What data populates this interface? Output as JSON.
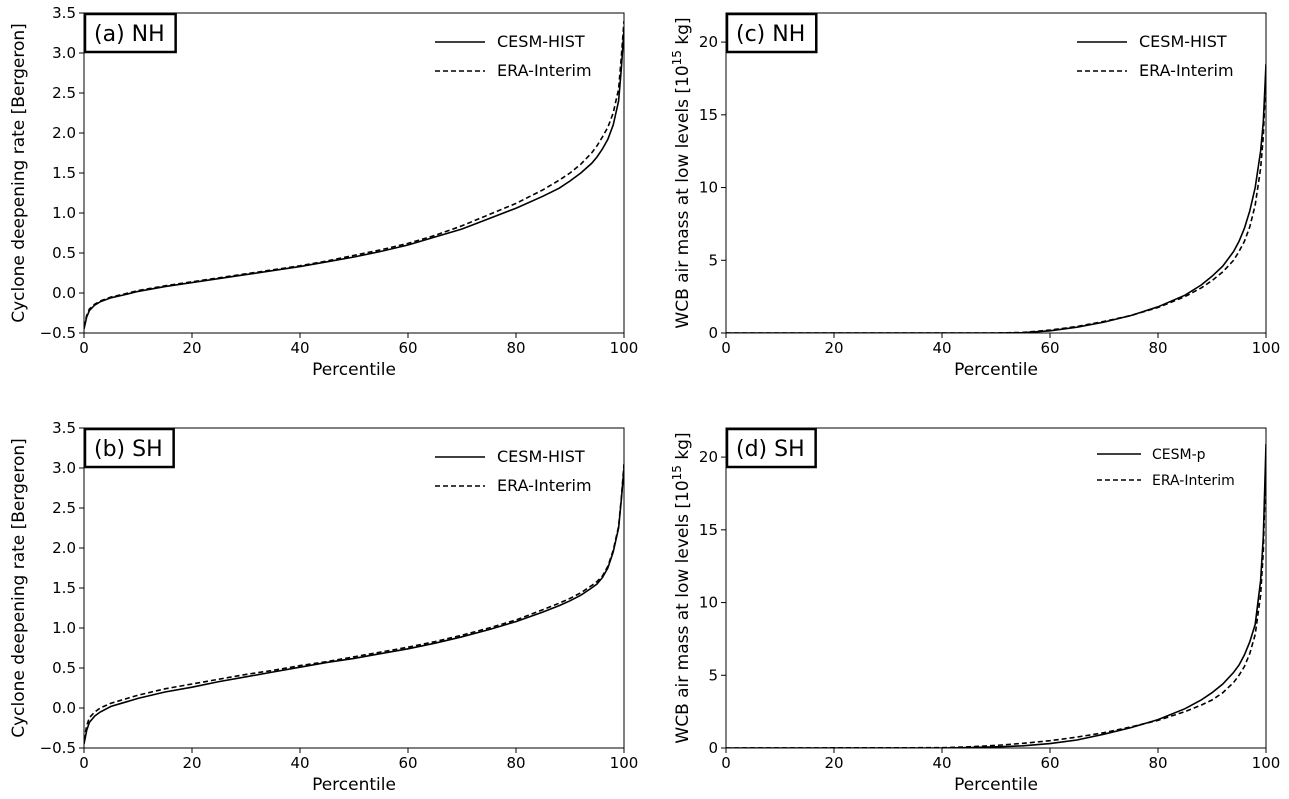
{
  "chart_data": [
    {
      "type": "line",
      "panel_label": "(a) NH",
      "xlabel": "Percentile",
      "ylabel": "Cyclone deepening rate [Bergeron]",
      "xlim": [
        0,
        100
      ],
      "ylim": [
        -0.5,
        3.5
      ],
      "xticks": [
        "0",
        "20",
        "40",
        "60",
        "80",
        "100"
      ],
      "yticks": [
        "−0.5",
        "0.0",
        "0.5",
        "1.0",
        "1.5",
        "2.0",
        "2.5",
        "3.0",
        "3.5"
      ],
      "legend_position": "top-right",
      "grid": false,
      "series": [
        {
          "name": "CESM-HIST",
          "style": "solid",
          "x": [
            0,
            0.5,
            1,
            2,
            3,
            5,
            7,
            10,
            15,
            20,
            25,
            30,
            35,
            40,
            45,
            50,
            55,
            60,
            65,
            70,
            75,
            80,
            85,
            88,
            90,
            92,
            94,
            95,
            96,
            97,
            98,
            99,
            99.5,
            100
          ],
          "y": [
            -0.45,
            -0.3,
            -0.22,
            -0.15,
            -0.11,
            -0.06,
            -0.03,
            0.02,
            0.08,
            0.13,
            0.18,
            0.23,
            0.28,
            0.33,
            0.39,
            0.45,
            0.52,
            0.6,
            0.7,
            0.8,
            0.93,
            1.06,
            1.21,
            1.31,
            1.4,
            1.5,
            1.62,
            1.7,
            1.8,
            1.92,
            2.1,
            2.4,
            2.8,
            3.3
          ]
        },
        {
          "name": "ERA-Interim",
          "style": "dashed",
          "x": [
            0,
            0.5,
            1,
            2,
            3,
            5,
            7,
            10,
            15,
            20,
            25,
            30,
            35,
            40,
            45,
            50,
            55,
            60,
            65,
            70,
            75,
            80,
            85,
            88,
            90,
            92,
            94,
            95,
            96,
            97,
            98,
            99,
            99.5,
            100
          ],
          "y": [
            -0.42,
            -0.28,
            -0.2,
            -0.14,
            -0.1,
            -0.05,
            -0.02,
            0.03,
            0.09,
            0.14,
            0.19,
            0.24,
            0.29,
            0.34,
            0.4,
            0.47,
            0.54,
            0.62,
            0.72,
            0.84,
            0.98,
            1.12,
            1.29,
            1.41,
            1.5,
            1.61,
            1.75,
            1.84,
            1.95,
            2.07,
            2.25,
            2.55,
            2.95,
            3.4
          ]
        }
      ]
    },
    {
      "type": "line",
      "panel_label": "(b) SH",
      "xlabel": "Percentile",
      "ylabel": "Cyclone deepening rate [Bergeron]",
      "xlim": [
        0,
        100
      ],
      "ylim": [
        -0.5,
        3.5
      ],
      "xticks": [
        "0",
        "20",
        "40",
        "60",
        "80",
        "100"
      ],
      "yticks": [
        "−0.5",
        "0.0",
        "0.5",
        "1.0",
        "1.5",
        "2.0",
        "2.5",
        "3.0",
        "3.5"
      ],
      "legend_position": "top-right",
      "grid": false,
      "series": [
        {
          "name": "CESM-HIST",
          "style": "solid",
          "x": [
            0,
            0.5,
            1,
            2,
            3,
            5,
            7,
            10,
            15,
            20,
            25,
            30,
            35,
            40,
            45,
            50,
            55,
            60,
            65,
            70,
            75,
            80,
            85,
            88,
            90,
            92,
            94,
            95,
            96,
            97,
            98,
            99,
            99.5,
            100
          ],
          "y": [
            -0.45,
            -0.28,
            -0.18,
            -0.1,
            -0.05,
            0.02,
            0.06,
            0.12,
            0.2,
            0.26,
            0.33,
            0.39,
            0.45,
            0.51,
            0.57,
            0.62,
            0.68,
            0.74,
            0.81,
            0.89,
            0.98,
            1.08,
            1.2,
            1.28,
            1.34,
            1.41,
            1.5,
            1.55,
            1.63,
            1.75,
            1.95,
            2.25,
            2.6,
            3.0
          ]
        },
        {
          "name": "ERA-Interim",
          "style": "dashed",
          "x": [
            0,
            0.5,
            1,
            2,
            3,
            5,
            7,
            10,
            15,
            20,
            25,
            30,
            35,
            40,
            45,
            50,
            55,
            60,
            65,
            70,
            75,
            80,
            85,
            88,
            90,
            92,
            94,
            95,
            96,
            97,
            98,
            99,
            99.5,
            100
          ],
          "y": [
            -0.4,
            -0.22,
            -0.12,
            -0.05,
            0.0,
            0.06,
            0.1,
            0.16,
            0.24,
            0.3,
            0.36,
            0.42,
            0.47,
            0.53,
            0.58,
            0.64,
            0.7,
            0.76,
            0.83,
            0.91,
            1.0,
            1.1,
            1.23,
            1.31,
            1.37,
            1.44,
            1.53,
            1.58,
            1.65,
            1.77,
            1.97,
            2.27,
            2.62,
            3.05
          ]
        }
      ]
    },
    {
      "type": "line",
      "panel_label": "(c) NH",
      "xlabel": "Percentile",
      "ylabel": "WCB air mass at low levels [10",
      "ylabel_sup": "15",
      "ylabel_end": " kg]",
      "xlim": [
        0,
        100
      ],
      "ylim": [
        0,
        22
      ],
      "xticks": [
        "0",
        "20",
        "40",
        "60",
        "80",
        "100"
      ],
      "yticks": [
        "0",
        "5",
        "10",
        "15",
        "20"
      ],
      "ytick_values": [
        0,
        5,
        10,
        15,
        20
      ],
      "legend_position": "top-right",
      "grid": false,
      "series": [
        {
          "name": "CESM-HIST",
          "style": "solid",
          "x": [
            0,
            50,
            55,
            60,
            65,
            70,
            75,
            80,
            85,
            88,
            90,
            92,
            94,
            95,
            96,
            97,
            98,
            99,
            99.5,
            100
          ],
          "y": [
            0,
            0,
            0.02,
            0.15,
            0.4,
            0.75,
            1.2,
            1.8,
            2.6,
            3.3,
            3.9,
            4.6,
            5.6,
            6.3,
            7.2,
            8.4,
            10.0,
            12.5,
            14.5,
            18.5
          ]
        },
        {
          "name": "ERA-Interim",
          "style": "dashed",
          "x": [
            0,
            50,
            55,
            60,
            65,
            70,
            75,
            80,
            85,
            88,
            90,
            92,
            94,
            95,
            96,
            97,
            98,
            99,
            99.5,
            100
          ],
          "y": [
            0,
            0,
            0.04,
            0.2,
            0.45,
            0.8,
            1.2,
            1.75,
            2.5,
            3.1,
            3.6,
            4.2,
            5.0,
            5.6,
            6.3,
            7.3,
            8.8,
            11.3,
            13.5,
            18.0
          ]
        }
      ]
    },
    {
      "type": "line",
      "panel_label": "(d) SH",
      "xlabel": "Percentile",
      "ylabel": "WCB air mass at low levels [10",
      "ylabel_sup": "15",
      "ylabel_end": " kg]",
      "xlim": [
        0,
        100
      ],
      "ylim": [
        0,
        22
      ],
      "xticks": [
        "0",
        "20",
        "40",
        "60",
        "80",
        "100"
      ],
      "yticks": [
        "0",
        "5",
        "10",
        "15",
        "20"
      ],
      "ytick_values": [
        0,
        5,
        10,
        15,
        20
      ],
      "legend_position": "top-right",
      "grid": false,
      "series": [
        {
          "name": "CESM-p",
          "style": "solid",
          "x": [
            0,
            40,
            45,
            50,
            55,
            60,
            65,
            70,
            75,
            80,
            85,
            88,
            90,
            92,
            94,
            95,
            96,
            97,
            98,
            99,
            99.5,
            100
          ],
          "y": [
            0,
            0,
            0.03,
            0.08,
            0.15,
            0.3,
            0.55,
            0.95,
            1.4,
            1.95,
            2.7,
            3.3,
            3.8,
            4.4,
            5.2,
            5.7,
            6.4,
            7.3,
            8.5,
            11.5,
            14.5,
            20.9
          ]
        },
        {
          "name": "ERA-Interim",
          "style": "dashed",
          "x": [
            0,
            40,
            45,
            50,
            55,
            60,
            65,
            70,
            75,
            80,
            85,
            88,
            90,
            92,
            94,
            95,
            96,
            97,
            98,
            99,
            99.5,
            100
          ],
          "y": [
            0,
            0.02,
            0.08,
            0.18,
            0.32,
            0.5,
            0.75,
            1.05,
            1.45,
            1.9,
            2.5,
            2.95,
            3.3,
            3.8,
            4.5,
            5.0,
            5.6,
            6.5,
            7.8,
            10.5,
            13.5,
            20.0
          ]
        }
      ]
    }
  ]
}
